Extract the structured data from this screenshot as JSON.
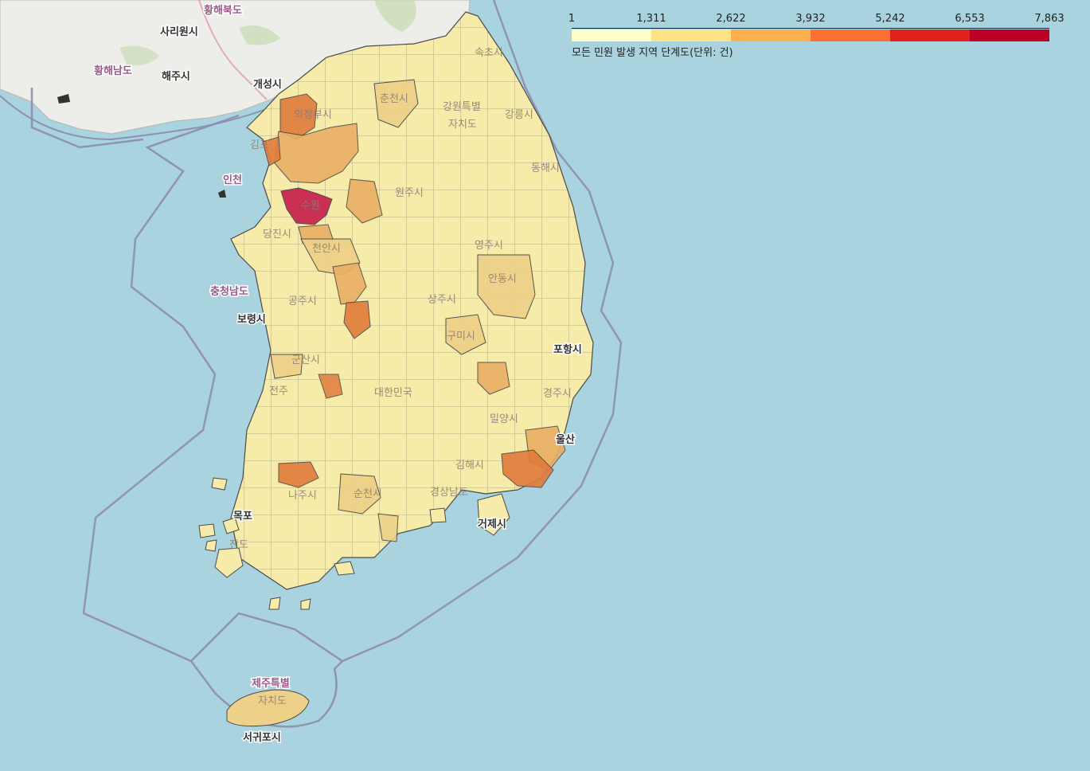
{
  "legend": {
    "ticks": [
      "1",
      "1,311",
      "2,622",
      "3,932",
      "5,242",
      "6,553",
      "7,863"
    ],
    "colors": [
      "#ffffcc",
      "#ffe187",
      "#fdb14d",
      "#fc7034",
      "#e0221d",
      "#bd0026"
    ],
    "caption": "모든 민원 발생 지역 단계도(단위: 건)"
  },
  "colors": {
    "sea": "#a9d3df",
    "north_land": "#ededea",
    "low": "#f6eba8",
    "mid_low": "#eed188",
    "mid": "#e9b064",
    "high": "#e07c3c",
    "highest": "#c8264f",
    "border": "#4a4a4a",
    "boundary_line": "#8c89ab"
  },
  "labels": {
    "hwanghae_bukdo": "황해북도",
    "sariwon": "사리원시",
    "hwanghae_namdo": "황해남도",
    "haeju": "해주시",
    "kaesong": "개성시",
    "uijeongbu": "의정부시",
    "chuncheon": "춘천시",
    "sokcho": "속초시",
    "gangneung": "강릉시",
    "donghae": "동해시",
    "gangwon_line1": "강원특별",
    "gangwon_line2": "자치도",
    "incheon": "인천",
    "gimpo": "김포",
    "suwon": "수원",
    "wonju": "원주시",
    "dangjin": "당진시",
    "cheonan": "천안시",
    "chungnam": "충청남도",
    "boryeong": "보령시",
    "gongju": "공주시",
    "yeongju": "영주시",
    "andong": "안동시",
    "sangju": "상주시",
    "gumi": "구미시",
    "pohang": "포항시",
    "gunsan": "군산시",
    "jeonju": "전주",
    "daehan": "대한민국",
    "gyeongju": "경주시",
    "miryang": "밀양시",
    "ulsan": "울산",
    "gimhae": "김해시",
    "naju": "나주시",
    "suncheon": "순천시",
    "gyeongnam": "경상남도",
    "geoje": "거제시",
    "mokpo": "목포",
    "jindo": "진도",
    "jeju_line1": "제주특별",
    "jeju_line2": "자치도",
    "seogwipo": "서귀포시"
  }
}
